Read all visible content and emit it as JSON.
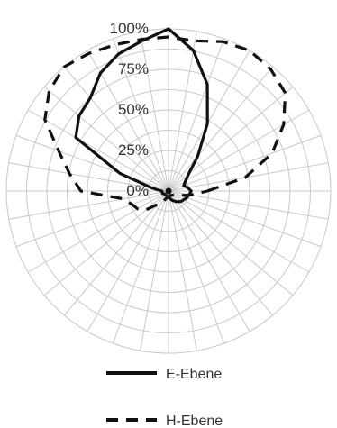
{
  "chart_data": {
    "type": "polar",
    "title": "",
    "radial_axis": {
      "ticks": [
        "0%",
        "25%",
        "50%",
        "75%",
        "100%"
      ],
      "range": [
        0,
        100
      ],
      "ring_count": 8
    },
    "angular_axis": {
      "spoke_step_degrees": 10
    },
    "grid": true,
    "series": [
      {
        "name": "E-Ebene",
        "line_style": "solid",
        "color": "#111111",
        "angles_deg": [
          0,
          10,
          20,
          30,
          40,
          50,
          60,
          70,
          80,
          90,
          100,
          110,
          120,
          130,
          140,
          150,
          160,
          170,
          180,
          200,
          220,
          240,
          260,
          275,
          290,
          305,
          320,
          340,
          350
        ],
        "values": [
          14,
          12,
          10,
          12,
          16,
          28,
          48,
          70,
          88,
          100,
          94,
          90,
          84,
          75,
          72,
          66,
          32,
          10,
          4,
          4,
          3,
          3,
          4,
          4,
          6,
          8,
          10,
          12,
          13
        ]
      },
      {
        "name": "H-Ebene",
        "line_style": "dashed",
        "color": "#111111",
        "angles_deg": [
          0,
          10,
          20,
          30,
          40,
          50,
          60,
          70,
          80,
          90,
          100,
          110,
          120,
          130,
          140,
          150,
          160,
          170,
          180,
          190,
          200,
          210,
          220,
          240,
          260,
          280,
          300,
          320,
          340,
          350
        ],
        "values": [
          24,
          48,
          68,
          82,
          94,
          98,
          100,
          98,
          94,
          95,
          95,
          96,
          98,
          100,
          96,
          88,
          72,
          62,
          54,
          28,
          24,
          22,
          18,
          8,
          4,
          3,
          3,
          4,
          8,
          14
        ]
      }
    ],
    "legend": {
      "placement": "bottom-center",
      "items": [
        "E-Ebene",
        "H-Ebene"
      ]
    }
  }
}
